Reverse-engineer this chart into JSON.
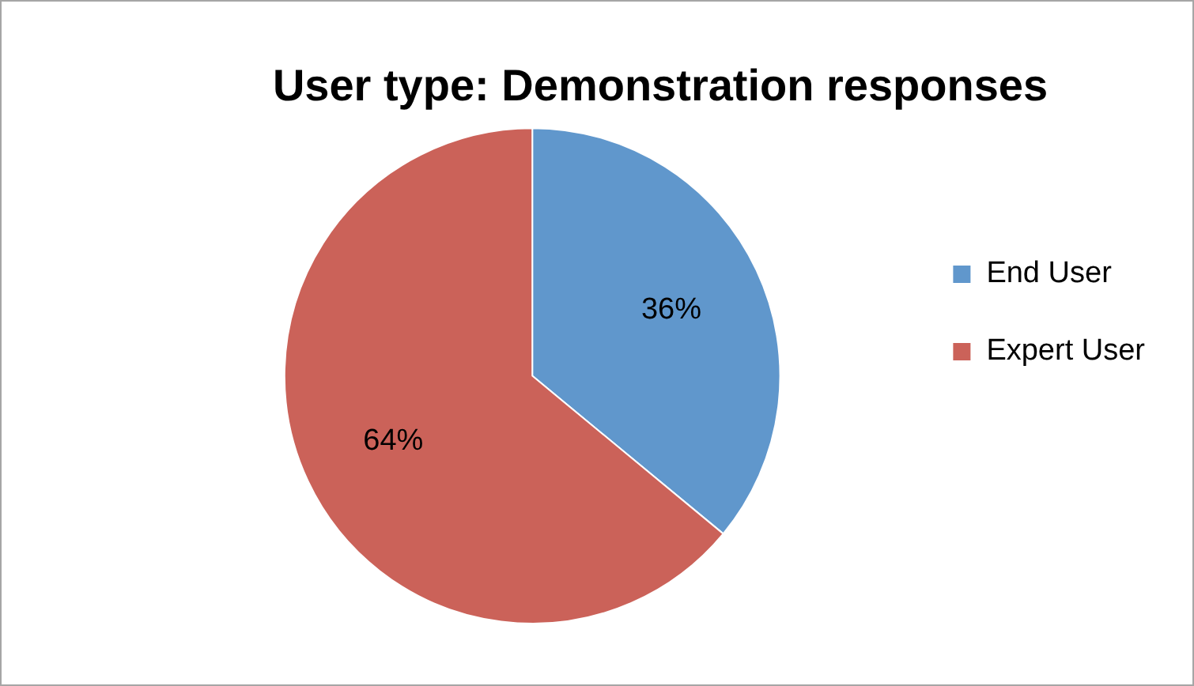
{
  "chart_data": {
    "type": "pie",
    "title": "User type: Demonstration responses",
    "categories": [
      "End User",
      "Expert User"
    ],
    "values": [
      36,
      64
    ],
    "colors": [
      "#6097cc",
      "#cb6259"
    ],
    "value_labels": [
      "36%",
      "64%"
    ],
    "legend": "right"
  }
}
